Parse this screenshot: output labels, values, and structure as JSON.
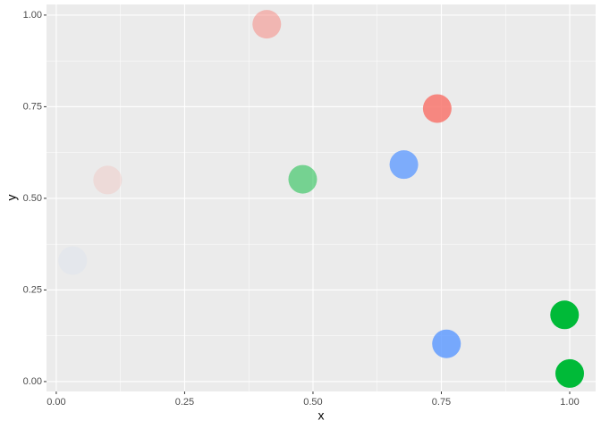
{
  "chart_data": {
    "type": "scatter",
    "x_label": "x",
    "y_label": "y",
    "x": [
      0.41,
      0.742,
      0.1,
      0.48,
      0.677,
      0.032,
      0.99,
      0.76,
      1.0
    ],
    "y": [
      0.975,
      0.745,
      0.55,
      0.552,
      0.592,
      0.33,
      0.182,
      0.103,
      0.022
    ],
    "colors": [
      "#F8766D",
      "#F8766D",
      "#F8766D",
      "#00BA38",
      "#619CFF",
      "#619CFF",
      "#00BA38",
      "#619CFF",
      "#00BA38"
    ],
    "alphas": [
      0.45,
      0.85,
      0.15,
      0.5,
      0.8,
      0.05,
      1,
      0.85,
      1
    ],
    "xlim": [
      -0.019,
      1.0505
    ],
    "ylim": [
      -0.027,
      1.029
    ],
    "xticks": [
      {
        "value": 0,
        "label": "0.00"
      },
      {
        "value": 0.25,
        "label": "0.25"
      },
      {
        "value": 0.5,
        "label": "0.50"
      },
      {
        "value": 0.75,
        "label": "0.75"
      },
      {
        "value": 1,
        "label": "1.00"
      }
    ],
    "yticks": [
      {
        "value": 0,
        "label": "0.00"
      },
      {
        "value": 0.25,
        "label": "0.25"
      },
      {
        "value": 0.5,
        "label": "0.50"
      },
      {
        "value": 0.75,
        "label": "0.75"
      },
      {
        "value": 1,
        "label": "1.00"
      }
    ],
    "xminor": [
      0.125,
      0.375,
      0.625,
      0.875
    ],
    "yminor": [
      0.125,
      0.375,
      0.625,
      0.875
    ],
    "grid": true
  }
}
